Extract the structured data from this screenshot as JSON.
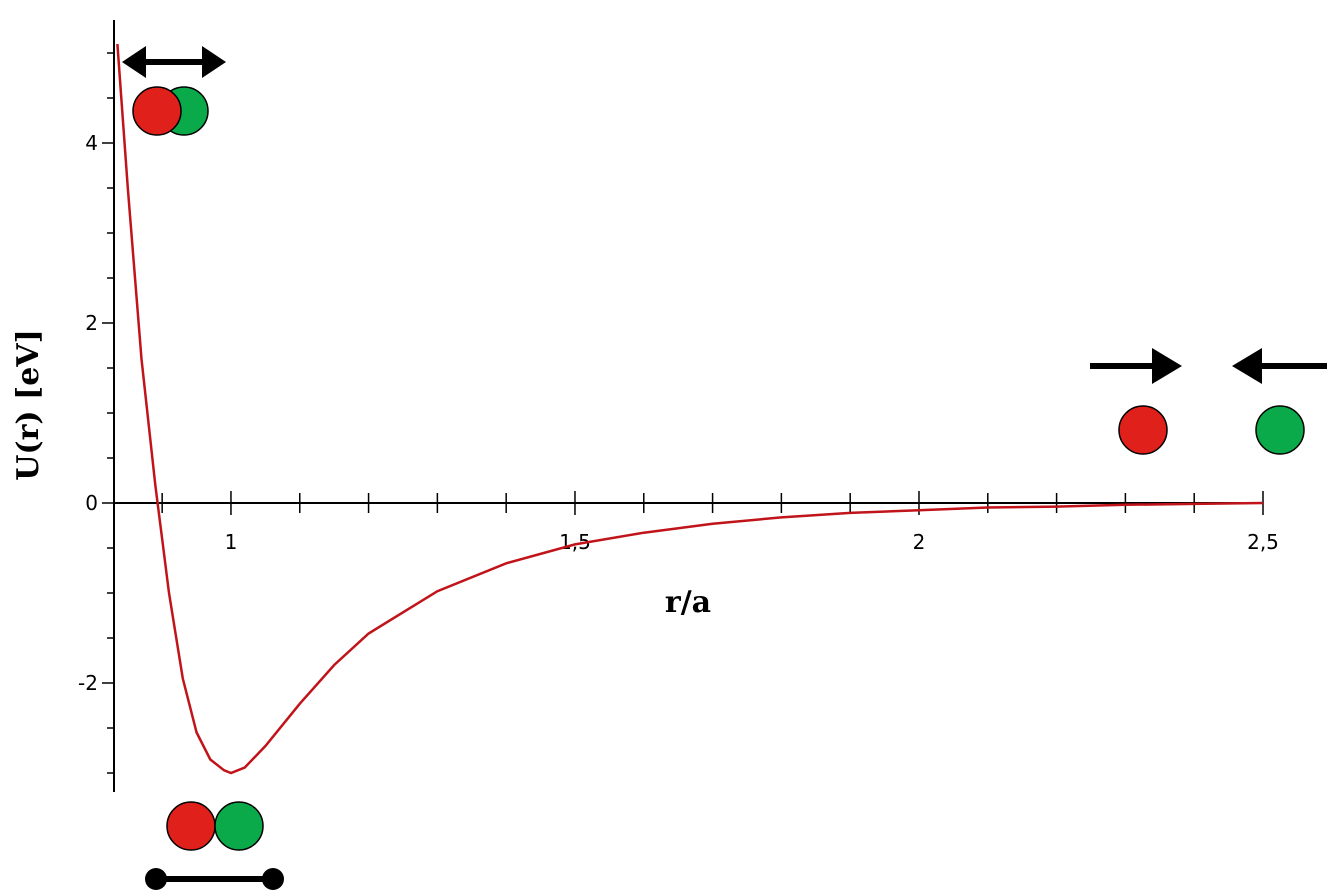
{
  "chart_data": {
    "type": "line",
    "title": "",
    "xlabel": "r/a",
    "ylabel": "U(r) [eV]",
    "xlim": [
      0.83,
      2.5
    ],
    "ylim": [
      -3.2,
      5.2
    ],
    "x_ticks": [
      {
        "value": 1,
        "label": "1"
      },
      {
        "value": 1.5,
        "label": "1,5"
      },
      {
        "value": 2,
        "label": "2"
      },
      {
        "value": 2.5,
        "label": "2,5"
      }
    ],
    "y_ticks": [
      {
        "value": -2,
        "label": "-2"
      },
      {
        "value": 0,
        "label": "0"
      },
      {
        "value": 2,
        "label": "2"
      },
      {
        "value": 4,
        "label": "4"
      }
    ],
    "grid": false,
    "series": [
      {
        "color": "#c0141a",
        "x": [
          0.835,
          0.85,
          0.87,
          0.89,
          0.91,
          0.93,
          0.95,
          0.97,
          0.99,
          1.0,
          1.02,
          1.05,
          1.1,
          1.15,
          1.2,
          1.3,
          1.4,
          1.5,
          1.6,
          1.7,
          1.8,
          1.9,
          2.0,
          2.1,
          2.2,
          2.3,
          2.4,
          2.5
        ],
        "y": [
          5.1,
          3.5,
          1.6,
          0.2,
          -1.0,
          -1.95,
          -2.55,
          -2.85,
          -2.97,
          -3.0,
          -2.94,
          -2.7,
          -2.23,
          -1.8,
          -1.45,
          -0.98,
          -0.67,
          -0.46,
          -0.33,
          -0.23,
          -0.16,
          -0.11,
          -0.08,
          -0.05,
          -0.04,
          -0.02,
          -0.01,
          0.0
        ]
      }
    ]
  },
  "annotations": {
    "atom_colors": {
      "atom_a": "#e0201a",
      "atom_b": "#0aaa4a"
    },
    "arrow_color": "#000000",
    "icons": [
      "double-arrow-icon",
      "arrow-right-icon",
      "arrow-left-icon",
      "bond-icon"
    ]
  }
}
